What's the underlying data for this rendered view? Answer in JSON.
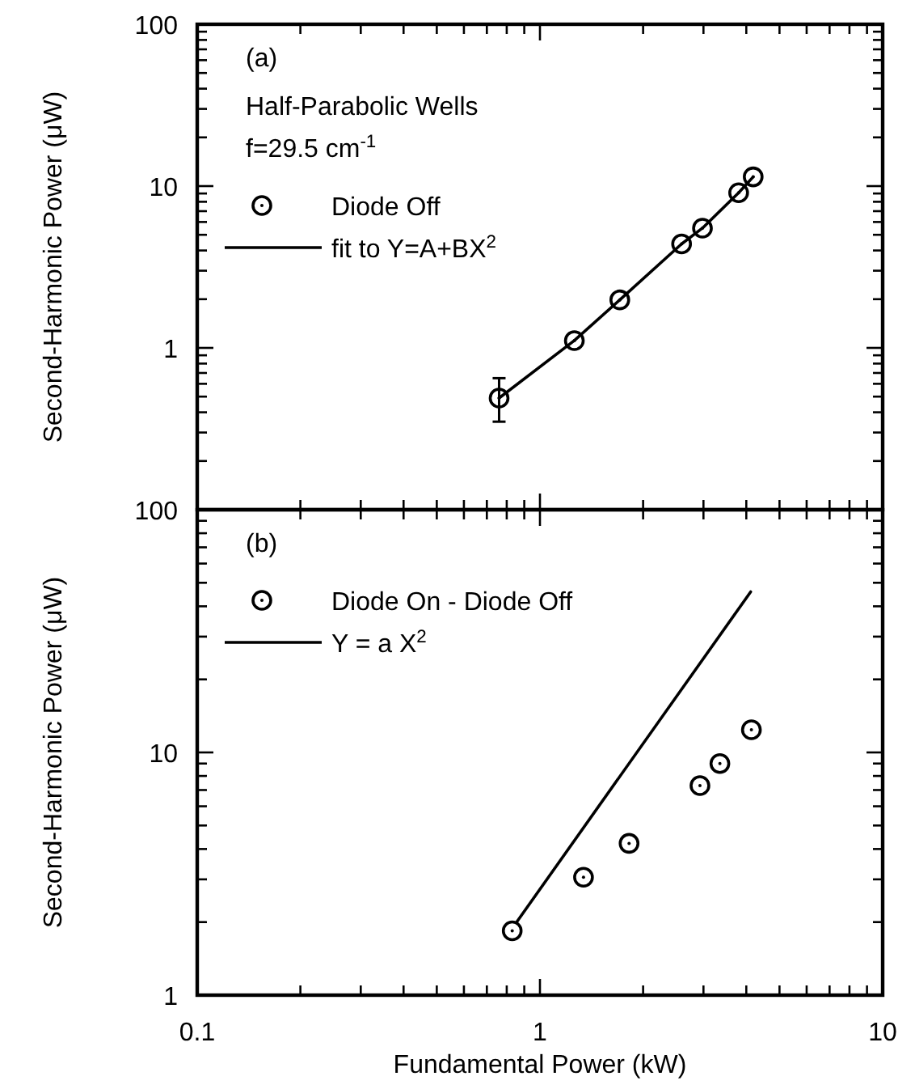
{
  "chart_data": [
    {
      "type": "scatter",
      "ylabel": "Second-Harmonic Power (μW)",
      "annotations": [
        "(a)",
        "Half-Parabolic Wells",
        "f=29.5 cm$^{-1}$"
      ],
      "log": "xy",
      "xlim": [
        0.1,
        10
      ],
      "ylim": [
        0.1,
        100
      ],
      "xticks": [
        0.1,
        {
          "value": 0.2,
          "label": null
        },
        {
          "value": 0.3,
          "label": null
        },
        {
          "value": 0.4,
          "label": null
        },
        {
          "value": 0.5,
          "label": null
        },
        {
          "value": 0.6,
          "label": null
        },
        {
          "value": 0.7,
          "label": null
        },
        {
          "value": 0.8,
          "label": null
        },
        {
          "value": 0.9,
          "label": null
        },
        1,
        {
          "value": 2,
          "label": null
        },
        {
          "value": 3,
          "label": null
        },
        {
          "value": 4,
          "label": null
        },
        {
          "value": 5,
          "label": null
        },
        {
          "value": 6,
          "label": null
        },
        {
          "value": 7,
          "label": null
        },
        {
          "value": 8,
          "label": null
        },
        {
          "value": 9,
          "label": null
        },
        10
      ],
      "yticks": [
        {
          "value": 0.2,
          "label": null
        },
        {
          "value": 0.3,
          "label": null
        },
        {
          "value": 0.4,
          "label": null
        },
        {
          "value": 0.5,
          "label": null
        },
        {
          "value": 0.6,
          "label": null
        },
        {
          "value": 0.7,
          "label": null
        },
        {
          "value": 0.8,
          "label": null
        },
        {
          "value": 0.9,
          "label": null
        },
        1,
        {
          "value": 2,
          "label": null
        },
        {
          "value": 3,
          "label": null
        },
        {
          "value": 4,
          "label": null
        },
        {
          "value": 5,
          "label": null
        },
        {
          "value": 6,
          "label": null
        },
        {
          "value": 7,
          "label": null
        },
        {
          "value": 8,
          "label": null
        },
        {
          "value": 9,
          "label": null
        },
        10,
        {
          "value": 20,
          "label": null
        },
        {
          "value": 30,
          "label": null
        },
        {
          "value": 40,
          "label": null
        },
        {
          "value": 50,
          "label": null
        },
        {
          "value": 60,
          "label": null
        },
        {
          "value": 70,
          "label": null
        },
        {
          "value": 80,
          "label": null
        },
        {
          "value": 90,
          "label": null
        },
        100
      ],
      "tick_labels": "y",
      "grid": false,
      "legend": "top left",
      "series": [
        {
          "name": "Diode Off",
          "color": "#000000",
          "marker": "circle",
          "x": [
            0.76,
            1.26,
            1.71,
            2.59,
            2.98,
            3.8,
            4.19
          ],
          "values": [
            0.49,
            1.11,
            1.98,
            4.39,
            5.5,
            9.1,
            11.4
          ],
          "errors": [
            [
              0.35,
              0.65
            ],
            null,
            null,
            null,
            null,
            null,
            null
          ]
        },
        {
          "name": "fit to Y=A+BX$^{2}$",
          "type": "line",
          "color": "#000000",
          "marker": "none",
          "line_style": "solid",
          "x": [
            0.76,
            1.26,
            1.71,
            2.59,
            2.98,
            3.8,
            4.19
          ],
          "values": [
            0.49,
            1.11,
            1.98,
            4.39,
            5.5,
            9.1,
            11.4
          ]
        }
      ]
    },
    {
      "type": "scatter",
      "xlabel": "Fundamental Power (kW)",
      "ylabel": "Second-Harmonic Power (μW)",
      "annotations": [
        "(b)"
      ],
      "log": "xy",
      "xlim": [
        0.1,
        10
      ],
      "ylim": [
        1,
        100
      ],
      "xticks": [
        0.1,
        {
          "value": 0.2,
          "label": null
        },
        {
          "value": 0.3,
          "label": null
        },
        {
          "value": 0.4,
          "label": null
        },
        {
          "value": 0.5,
          "label": null
        },
        {
          "value": 0.6,
          "label": null
        },
        {
          "value": 0.7,
          "label": null
        },
        {
          "value": 0.8,
          "label": null
        },
        {
          "value": 0.9,
          "label": null
        },
        1,
        {
          "value": 2,
          "label": null
        },
        {
          "value": 3,
          "label": null
        },
        {
          "value": 4,
          "label": null
        },
        {
          "value": 5,
          "label": null
        },
        {
          "value": 6,
          "label": null
        },
        {
          "value": 7,
          "label": null
        },
        {
          "value": 8,
          "label": null
        },
        {
          "value": 9,
          "label": null
        },
        10
      ],
      "yticks": [
        1,
        {
          "value": 2,
          "label": null
        },
        {
          "value": 3,
          "label": null
        },
        {
          "value": 4,
          "label": null
        },
        {
          "value": 5,
          "label": null
        },
        {
          "value": 6,
          "label": null
        },
        {
          "value": 7,
          "label": null
        },
        {
          "value": 8,
          "label": null
        },
        {
          "value": 9,
          "label": null
        },
        10,
        {
          "value": 20,
          "label": null
        },
        {
          "value": 30,
          "label": null
        },
        {
          "value": 40,
          "label": null
        },
        {
          "value": 50,
          "label": null
        },
        {
          "value": 60,
          "label": null
        },
        {
          "value": 70,
          "label": null
        },
        {
          "value": 80,
          "label": null
        },
        {
          "value": 90,
          "label": null
        },
        100
      ],
      "grid": false,
      "legend": "top left",
      "series": [
        {
          "name": "Diode On - Diode Off",
          "color": "#000000",
          "marker": "circle",
          "x": [
            0.83,
            1.34,
            1.82,
            2.93,
            3.35,
            4.14
          ],
          "values": [
            1.84,
            3.06,
            4.22,
            7.3,
            9.0,
            12.4
          ]
        },
        {
          "name": "Y = a X$^{2}$",
          "type": "line",
          "color": "#000000",
          "marker": "none",
          "line_style": "solid",
          "x": [
            0.855,
            4.12
          ],
          "values": [
            2.0,
            45.9
          ]
        }
      ]
    }
  ]
}
